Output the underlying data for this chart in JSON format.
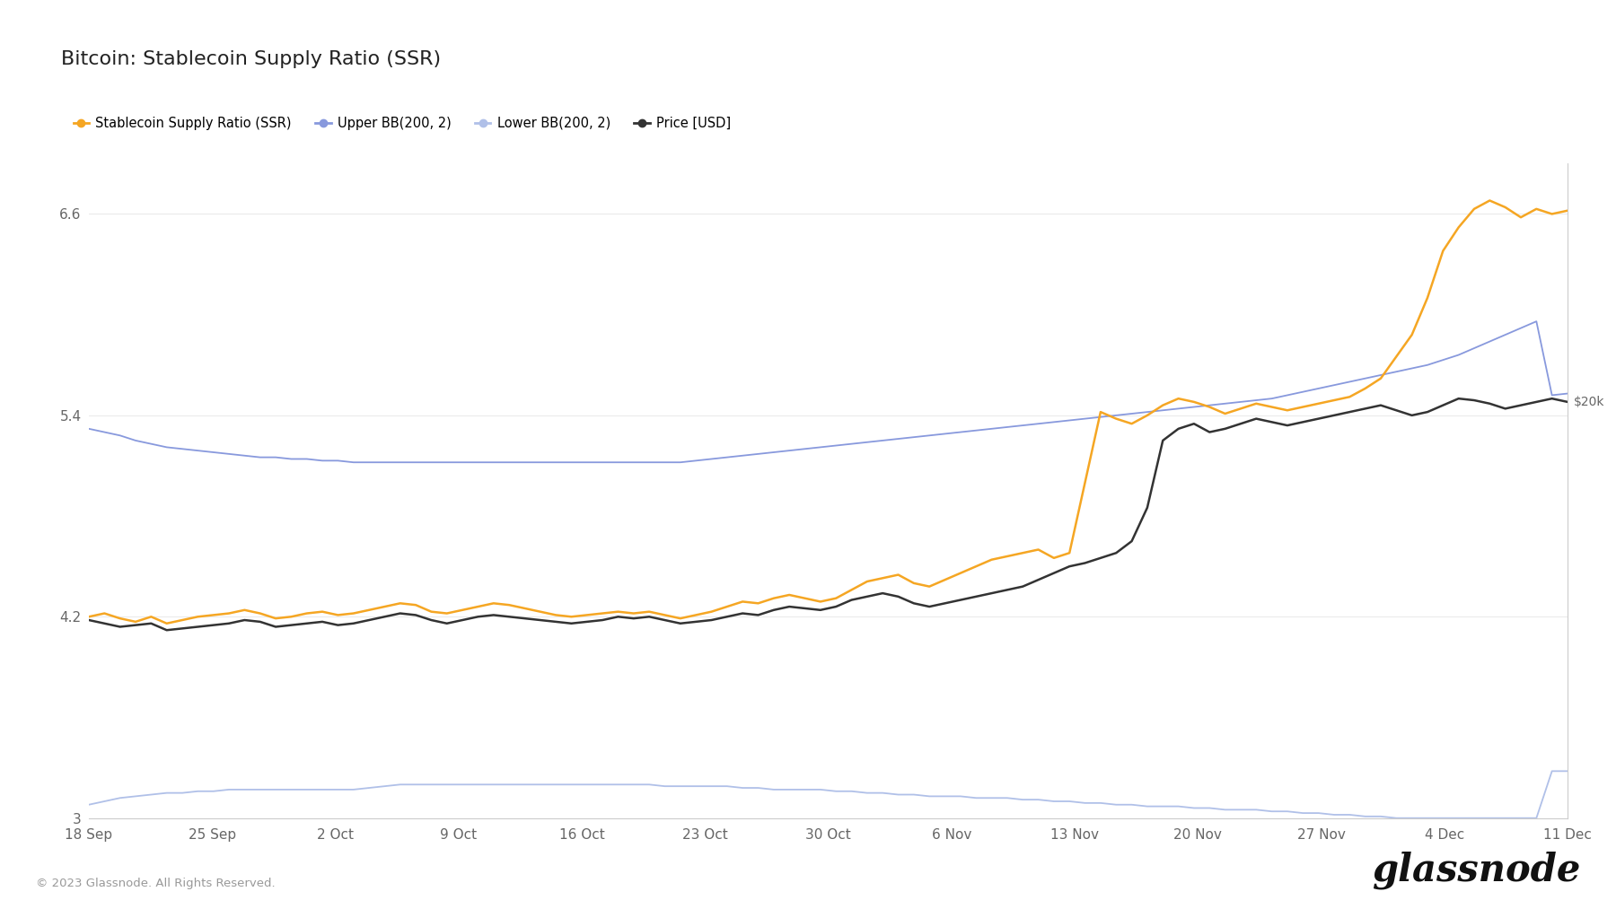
{
  "title": "Bitcoin: Stablecoin Supply Ratio (SSR)",
  "title_fontsize": 16,
  "background_color": "#ffffff",
  "plot_bg_color": "#ffffff",
  "grid_color": "#ebebeb",
  "ylim": [
    3.0,
    6.9
  ],
  "price_label": "$20k",
  "copyright": "© 2023 Glassnode. All Rights Reserved.",
  "watermark": "glassnode",
  "legend_labels": [
    "Stablecoin Supply Ratio (SSR)",
    "Upper BB(200, 2)",
    "Lower BB(200, 2)",
    "Price [USD]"
  ],
  "legend_colors": [
    "#f5a623",
    "#8899dd",
    "#b0c0e8",
    "#333333"
  ],
  "ssr_color": "#f5a623",
  "upper_bb_color": "#8899dd",
  "lower_bb_color": "#b0c0e8",
  "price_color": "#333333",
  "xtick_labels": [
    "18 Sep",
    "25 Sep",
    "2 Oct",
    "9 Oct",
    "16 Oct",
    "23 Oct",
    "30 Oct",
    "6 Nov",
    "13 Nov",
    "20 Nov",
    "27 Nov",
    "4 Dec",
    "11 Dec"
  ],
  "ssr": [
    4.2,
    4.22,
    4.19,
    4.17,
    4.2,
    4.16,
    4.18,
    4.2,
    4.21,
    4.22,
    4.24,
    4.22,
    4.19,
    4.2,
    4.22,
    4.23,
    4.21,
    4.22,
    4.24,
    4.26,
    4.28,
    4.27,
    4.23,
    4.22,
    4.24,
    4.26,
    4.28,
    4.27,
    4.25,
    4.23,
    4.21,
    4.2,
    4.21,
    4.22,
    4.23,
    4.22,
    4.23,
    4.21,
    4.19,
    4.21,
    4.23,
    4.26,
    4.29,
    4.28,
    4.31,
    4.33,
    4.31,
    4.29,
    4.31,
    4.36,
    4.41,
    4.43,
    4.45,
    4.4,
    4.38,
    4.42,
    4.46,
    4.5,
    4.54,
    4.56,
    4.58,
    4.6,
    4.55,
    4.58,
    5.0,
    5.42,
    5.38,
    5.35,
    5.4,
    5.46,
    5.5,
    5.48,
    5.45,
    5.41,
    5.44,
    5.47,
    5.45,
    5.43,
    5.45,
    5.47,
    5.49,
    5.51,
    5.56,
    5.62,
    5.75,
    5.88,
    6.1,
    6.38,
    6.52,
    6.63,
    6.68,
    6.64,
    6.58,
    6.63,
    6.6,
    6.62
  ],
  "upper_bb": [
    5.32,
    5.3,
    5.28,
    5.25,
    5.23,
    5.21,
    5.2,
    5.19,
    5.18,
    5.17,
    5.16,
    5.15,
    5.15,
    5.14,
    5.14,
    5.13,
    5.13,
    5.12,
    5.12,
    5.12,
    5.12,
    5.12,
    5.12,
    5.12,
    5.12,
    5.12,
    5.12,
    5.12,
    5.12,
    5.12,
    5.12,
    5.12,
    5.12,
    5.12,
    5.12,
    5.12,
    5.12,
    5.12,
    5.12,
    5.13,
    5.14,
    5.15,
    5.16,
    5.17,
    5.18,
    5.19,
    5.2,
    5.21,
    5.22,
    5.23,
    5.24,
    5.25,
    5.26,
    5.27,
    5.28,
    5.29,
    5.3,
    5.31,
    5.32,
    5.33,
    5.34,
    5.35,
    5.36,
    5.37,
    5.38,
    5.39,
    5.4,
    5.41,
    5.42,
    5.43,
    5.44,
    5.45,
    5.46,
    5.47,
    5.48,
    5.49,
    5.5,
    5.52,
    5.54,
    5.56,
    5.58,
    5.6,
    5.62,
    5.64,
    5.66,
    5.68,
    5.7,
    5.73,
    5.76,
    5.8,
    5.84,
    5.88,
    5.92,
    5.96,
    5.52,
    5.53
  ],
  "lower_bb": [
    3.08,
    3.1,
    3.12,
    3.13,
    3.14,
    3.15,
    3.15,
    3.16,
    3.16,
    3.17,
    3.17,
    3.17,
    3.17,
    3.17,
    3.17,
    3.17,
    3.17,
    3.17,
    3.18,
    3.19,
    3.2,
    3.2,
    3.2,
    3.2,
    3.2,
    3.2,
    3.2,
    3.2,
    3.2,
    3.2,
    3.2,
    3.2,
    3.2,
    3.2,
    3.2,
    3.2,
    3.2,
    3.19,
    3.19,
    3.19,
    3.19,
    3.19,
    3.18,
    3.18,
    3.17,
    3.17,
    3.17,
    3.17,
    3.16,
    3.16,
    3.15,
    3.15,
    3.14,
    3.14,
    3.13,
    3.13,
    3.13,
    3.12,
    3.12,
    3.12,
    3.11,
    3.11,
    3.1,
    3.1,
    3.09,
    3.09,
    3.08,
    3.08,
    3.07,
    3.07,
    3.07,
    3.06,
    3.06,
    3.05,
    3.05,
    3.05,
    3.04,
    3.04,
    3.03,
    3.03,
    3.02,
    3.02,
    3.01,
    3.01,
    3.0,
    3.0,
    3.0,
    3.0,
    3.0,
    3.0,
    3.0,
    3.0,
    3.0,
    3.0,
    3.28,
    3.28
  ],
  "price": [
    4.18,
    4.16,
    4.14,
    4.15,
    4.16,
    4.12,
    4.13,
    4.14,
    4.15,
    4.16,
    4.18,
    4.17,
    4.14,
    4.15,
    4.16,
    4.17,
    4.15,
    4.16,
    4.18,
    4.2,
    4.22,
    4.21,
    4.18,
    4.16,
    4.18,
    4.2,
    4.21,
    4.2,
    4.19,
    4.18,
    4.17,
    4.16,
    4.17,
    4.18,
    4.2,
    4.19,
    4.2,
    4.18,
    4.16,
    4.17,
    4.18,
    4.2,
    4.22,
    4.21,
    4.24,
    4.26,
    4.25,
    4.24,
    4.26,
    4.3,
    4.32,
    4.34,
    4.32,
    4.28,
    4.26,
    4.28,
    4.3,
    4.32,
    4.34,
    4.36,
    4.38,
    4.42,
    4.46,
    4.5,
    4.52,
    4.55,
    4.58,
    4.65,
    4.85,
    5.25,
    5.32,
    5.35,
    5.3,
    5.32,
    5.35,
    5.38,
    5.36,
    5.34,
    5.36,
    5.38,
    5.4,
    5.42,
    5.44,
    5.46,
    5.43,
    5.4,
    5.42,
    5.46,
    5.5,
    5.49,
    5.47,
    5.44,
    5.46,
    5.48,
    5.5,
    5.48
  ]
}
